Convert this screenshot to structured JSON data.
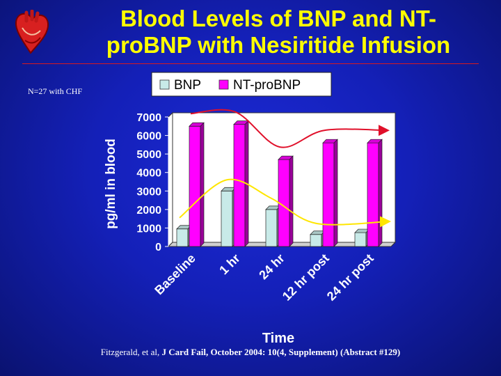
{
  "slide": {
    "title_line1": "Blood Levels of BNP and NT-",
    "title_line2": "proBNP with Nesiritide Infusion",
    "note": "N=27 with CHF",
    "citation_prefix": "Fitzgerald, et al, ",
    "citation_journal": "J Card Fail, October 2004: 10(4, Supplement)",
    "citation_suffix": " (Abstract #129)",
    "logo_icon": "anatomical-heart-icon"
  },
  "colors": {
    "background": "#1420b8",
    "title": "#ffff00",
    "rule": "#d8191f",
    "bnp": "#c8eae8",
    "ntprobnp": "#ff00ff",
    "bnp_trend": "#ffe600",
    "ntprobnp_trend": "#e0102a"
  },
  "chart_data": {
    "type": "bar",
    "categories": [
      "Baseline",
      "1 hr",
      "24 hr",
      "12 hr post",
      "24 hr post"
    ],
    "series": [
      {
        "name": "BNP",
        "values": [
          950,
          3000,
          2000,
          650,
          750
        ]
      },
      {
        "name": "NT-proBNP",
        "values": [
          6500,
          6600,
          4700,
          5600,
          5600
        ]
      }
    ],
    "xlabel": "Time",
    "ylabel": "pg/ml in blood",
    "ylim": [
      0,
      7000
    ],
    "yticks": [
      "0",
      "1000",
      "2000",
      "3000",
      "4000",
      "5000",
      "6000",
      "7000"
    ],
    "legend_position": "top-center",
    "grid": false,
    "trend_arrows": true
  }
}
